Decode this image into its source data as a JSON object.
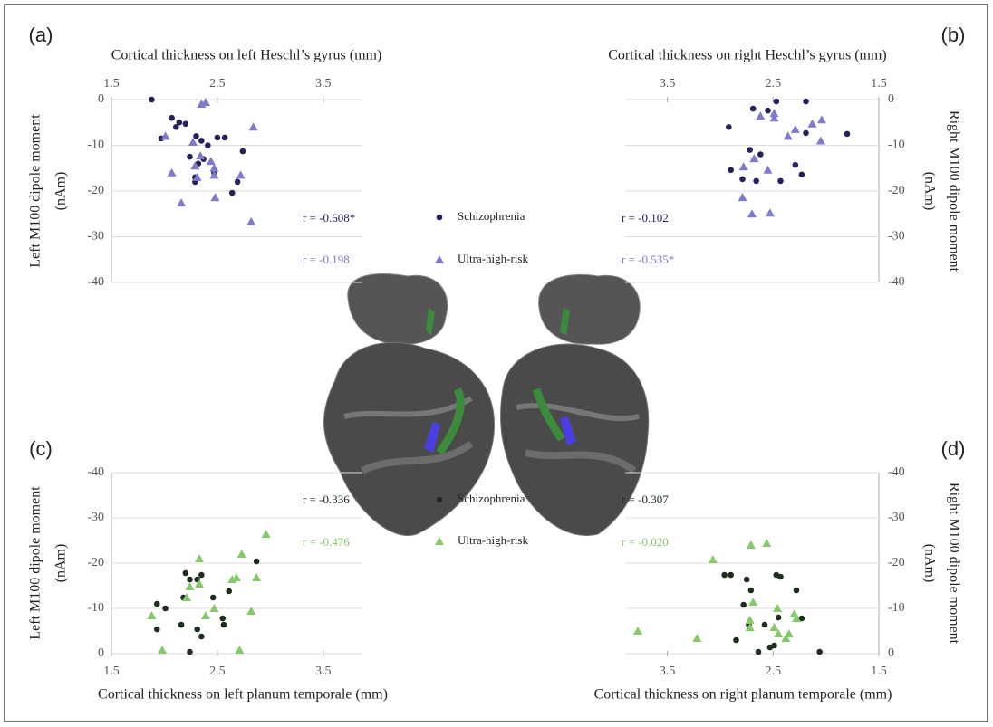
{
  "chart_data": [
    {
      "type": "scatter",
      "panel_label": "(a)",
      "xlabel": "Cortical thickness on left Heschl’s gyrus (mm)",
      "ylabel": [
        "Left M100 dipole moment",
        "(nAm)"
      ],
      "xlim": [
        1.5,
        3.87
      ],
      "ylim": [
        -40,
        0
      ],
      "xticks": [
        1.5,
        2.5,
        3.5
      ],
      "yticks": [
        0,
        -10,
        -20,
        -30,
        -40
      ],
      "grid": true,
      "series": [
        {
          "name": "Schizophrenia",
          "color": "#23235a",
          "marker": "circle",
          "x": [
            1.88,
            2.07,
            2.14,
            2.2,
            1.97,
            2.11,
            2.3,
            2.35,
            2.41,
            2.5,
            2.57,
            2.74,
            2.37,
            2.24,
            2.32,
            2.29,
            2.29,
            2.47,
            2.69,
            2.64
          ],
          "values": [
            0,
            -4,
            -5,
            -5.3,
            -8.5,
            -6,
            -8,
            -9,
            -10,
            -8.3,
            -8.3,
            -11.3,
            -13,
            -12.5,
            -14,
            -17,
            -18,
            -16,
            -18,
            -20.4
          ]
        },
        {
          "name": "Ultra-high-risk",
          "color": "#7f7acb",
          "marker": "triangle",
          "x": [
            2.35,
            2.39,
            2.84,
            2.01,
            2.27,
            2.34,
            2.44,
            2.47,
            2.29,
            2.47,
            2.31,
            2.07,
            2.72,
            2.16,
            2.48,
            2.82
          ],
          "values": [
            -1,
            -0.6,
            -6,
            -8,
            -9.3,
            -12.3,
            -13.5,
            -15,
            -14.5,
            -16.5,
            -17,
            -16,
            -16.5,
            -22.6,
            -21.4,
            -26.7
          ]
        }
      ],
      "annotations": [
        {
          "text": "r = -0.608*",
          "color": "#23235a"
        },
        {
          "text": "r = -0.198",
          "color": "#7f7acb"
        }
      ]
    },
    {
      "type": "scatter",
      "panel_label": "(b)",
      "xlabel": "Cortical thickness on right Heschl’s gyrus (mm)",
      "ylabel": [
        "Right M100 dipole moment",
        "(nAm)"
      ],
      "xlim": [
        3.9,
        1.5
      ],
      "ylim": [
        -40,
        0
      ],
      "xticks": [
        3.5,
        2.5,
        1.5
      ],
      "yticks": [
        0,
        -10,
        -20,
        -30,
        -40
      ],
      "grid": true,
      "series": [
        {
          "color": "#23235a",
          "marker": "circle",
          "x": [
            2.47,
            2.19,
            2.69,
            2.55,
            2.92,
            2.19,
            1.8,
            2.72,
            2.62,
            2.29,
            2.9,
            2.23,
            2.79,
            2.66,
            2.43
          ],
          "values": [
            -0.4,
            -0.4,
            -2,
            -2.4,
            -6,
            -7.3,
            -7.5,
            -11,
            -12,
            -14.3,
            -15.4,
            -16.4,
            -17.4,
            -17.8,
            -17.8
          ]
        },
        {
          "color": "#7f7acb",
          "marker": "triangle",
          "x": [
            2.62,
            2.49,
            2.49,
            2.04,
            2.13,
            2.29,
            2.36,
            2.05,
            2.68,
            2.78,
            2.55,
            2.79,
            2.7,
            2.53
          ],
          "values": [
            -3.6,
            -4,
            -3,
            -4.4,
            -5.3,
            -6.5,
            -8,
            -9,
            -12.9,
            -14.7,
            -15.4,
            -21.4,
            -25,
            -24.8
          ]
        }
      ],
      "annotations": [
        {
          "text": "r = -0.102",
          "color": "#23235a"
        },
        {
          "text": "r = -0.535*",
          "color": "#7f7acb"
        }
      ]
    },
    {
      "type": "scatter",
      "panel_label": "(c)",
      "xlabel": "Cortical thickness on left planum temporale (mm)",
      "ylabel": [
        "Left M100 dipole moment",
        "(nAm)"
      ],
      "xlim": [
        1.5,
        3.87
      ],
      "ylim": [
        0,
        -40
      ],
      "xticks": [
        1.5,
        2.5,
        3.5
      ],
      "yticks": [
        -40,
        -30,
        -20,
        -10,
        0
      ],
      "grid": true,
      "series": [
        {
          "name": "Schizophrenia",
          "color": "#1e2e1e",
          "marker": "circle",
          "x": [
            1.93,
            2.01,
            1.93,
            2.16,
            2.18,
            2.2,
            2.24,
            2.31,
            2.35,
            2.24,
            2.31,
            2.35,
            2.46,
            2.56,
            2.55,
            2.61,
            2.87
          ],
          "values": [
            -11,
            -10,
            -5.4,
            -6.4,
            -12.4,
            -17.8,
            -16.4,
            -16.4,
            -17.4,
            -0.4,
            -5.4,
            -3.8,
            -12.4,
            -6.4,
            -7.8,
            -13.8,
            -20.4
          ]
        },
        {
          "name": "Ultra-high-risk",
          "color": "#86c96a",
          "marker": "triangle",
          "x": [
            1.88,
            1.98,
            2.24,
            2.21,
            2.33,
            2.33,
            2.39,
            2.47,
            2.64,
            2.68,
            2.73,
            2.87,
            2.96,
            2.71,
            2.82
          ],
          "values": [
            -8.4,
            -0.8,
            -14.8,
            -12.4,
            -21,
            -15.4,
            -8.4,
            -10,
            -16.4,
            -16.8,
            -22,
            -16.8,
            -26.4,
            -0.8,
            -9.4
          ]
        }
      ],
      "annotations": [
        {
          "text": "r = -0.336",
          "color": "#1e2e1e"
        },
        {
          "text": "r = -0.476",
          "color": "#86c96a"
        }
      ]
    },
    {
      "type": "scatter",
      "panel_label": "(d)",
      "xlabel": "Cortical thickness on right planum temporale (mm)",
      "ylabel": [
        "Right M100 dipole moment",
        "(nAm)"
      ],
      "xlim": [
        3.9,
        1.5
      ],
      "ylim": [
        0,
        -40
      ],
      "xticks": [
        3.5,
        2.5,
        1.5
      ],
      "yticks": [
        -40,
        -30,
        -20,
        -10,
        0
      ],
      "grid": true,
      "series": [
        {
          "color": "#1e2e1e",
          "marker": "circle",
          "x": [
            2.96,
            2.9,
            2.75,
            2.71,
            2.47,
            2.43,
            2.28,
            2.78,
            2.45,
            2.23,
            2.73,
            2.58,
            2.85,
            2.49,
            2.53,
            2.64,
            2.06
          ],
          "values": [
            -17.4,
            -17.4,
            -16.4,
            -14,
            -17.4,
            -17,
            -14,
            -10.8,
            -8,
            -7.8,
            -6.4,
            -6.4,
            -3,
            -1.8,
            -1.4,
            -0.4,
            -0.4
          ]
        },
        {
          "color": "#86c96a",
          "marker": "triangle",
          "x": [
            3.78,
            3.22,
            3.07,
            2.71,
            2.56,
            2.69,
            2.72,
            2.46,
            2.3,
            2.28,
            2.49,
            2.45,
            2.38,
            2.35,
            2.72
          ],
          "values": [
            -5,
            -3.4,
            -20.8,
            -24,
            -24.4,
            -11.4,
            -7.4,
            -10,
            -8.8,
            -7.8,
            -5.8,
            -4.4,
            -3.4,
            -4.4,
            -5.8
          ]
        }
      ],
      "annotations": [
        {
          "text": "r = -0.307",
          "color": "#1e2e1e"
        },
        {
          "text": "r = -0.020",
          "color": "#86c96a"
        }
      ]
    }
  ]
}
